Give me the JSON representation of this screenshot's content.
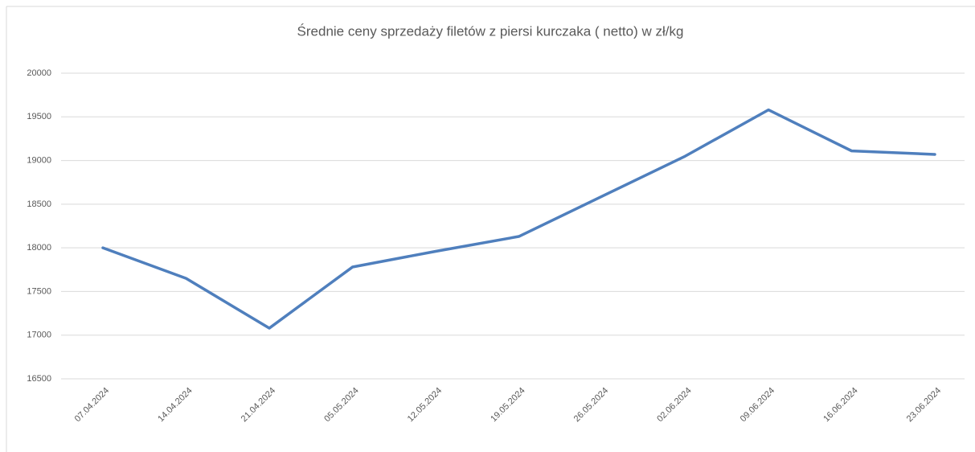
{
  "chart_data": {
    "type": "line",
    "title": "Średnie ceny sprzedaży filetów z piersi kurczaka ( netto) w zł/kg",
    "categories": [
      "07.04.2024",
      "14.04.2024",
      "21.04.2024",
      "05.05.2024",
      "12.05.2024",
      "19.05.2024",
      "26.05.2024",
      "02.06.2024",
      "09.06.2024",
      "16.06.2024",
      "23.06.2024"
    ],
    "series": [
      {
        "color": "#4f7fbd",
        "values": [
          18000,
          17650,
          17080,
          17780,
          17960,
          18130,
          18590,
          19050,
          19580,
          19110,
          19070
        ]
      }
    ],
    "ylim": [
      16500,
      20000
    ],
    "yticks": [
      16500,
      17000,
      17500,
      18000,
      18500,
      19000,
      19500,
      20000
    ],
    "grid": true
  }
}
